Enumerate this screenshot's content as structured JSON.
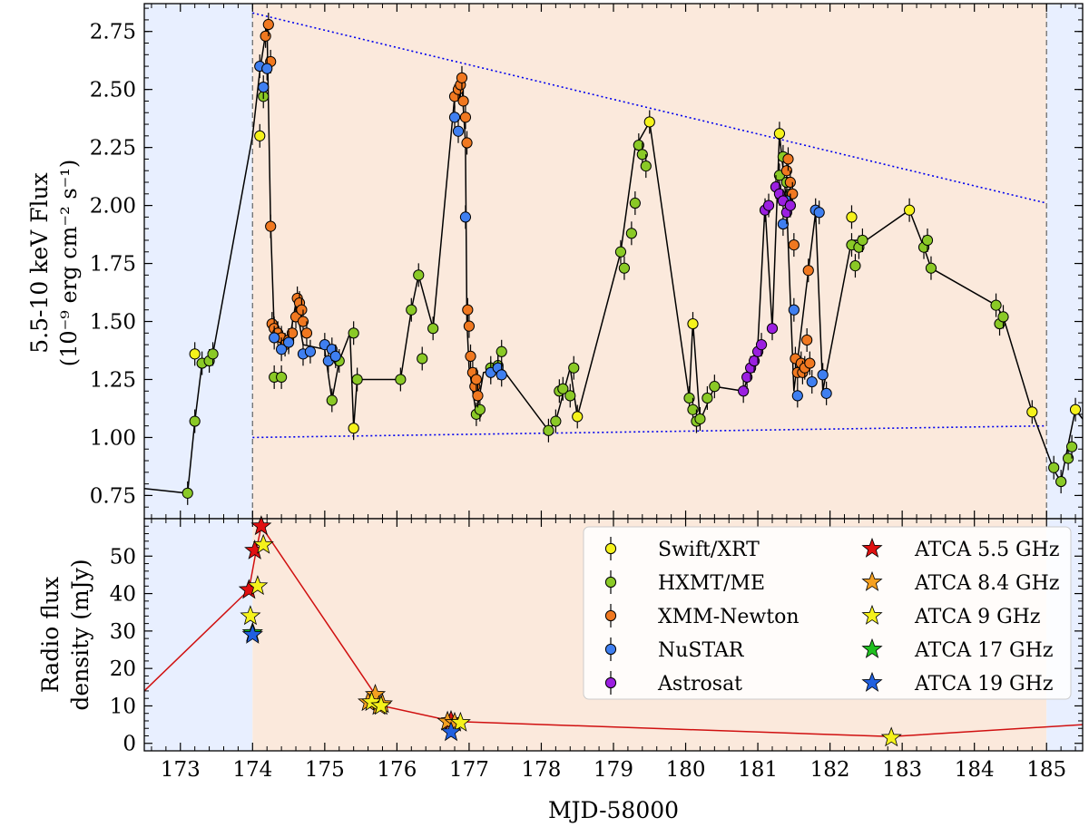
{
  "figure": {
    "xlabel": "MJD-58000",
    "x_ticks": [
      "173",
      "174",
      "175",
      "176",
      "177",
      "178",
      "179",
      "180",
      "181",
      "182",
      "183",
      "184",
      "185"
    ]
  },
  "colors": {
    "quiescent_bg": "#e8efff",
    "outburst_bg": "#fbe9dc",
    "swift": "#f5f21b",
    "hxmt": "#8ac926",
    "xmm": "#f07820",
    "nustar": "#3f7ff0",
    "astrosat": "#9b1fe0",
    "atca_5_5": "#e01010",
    "atca_8_4": "#f5a020",
    "atca_9": "#f5f21b",
    "atca_17": "#20c020",
    "atca_19": "#2060e0",
    "envelope": "#0000ee",
    "radio_line": "#d01010"
  },
  "chart_data": [
    {
      "type": "scatter",
      "panel": "top",
      "ylabel": "5.5-10 keV Flux",
      "ylabel_units": "(10⁻⁹ erg cm⁻² s⁻¹)",
      "xlim": [
        172.5,
        185.5
      ],
      "ylim": [
        0.65,
        2.87
      ],
      "y_ticks": [
        "0.75",
        "1.00",
        "1.25",
        "1.50",
        "1.75",
        "2.00",
        "2.25",
        "2.50",
        "2.75"
      ],
      "shaded_regions": [
        [
          172.5,
          174.0,
          "quiescent"
        ],
        [
          174.0,
          185.0,
          "outburst"
        ],
        [
          185.0,
          185.5,
          "quiescent"
        ]
      ],
      "envelope_upper": [
        [
          174.0,
          2.83
        ],
        [
          185.0,
          2.01
        ]
      ],
      "envelope_lower": [
        [
          174.0,
          1.0
        ],
        [
          185.0,
          1.05
        ]
      ],
      "connected_line": [
        [
          172.5,
          0.78
        ],
        [
          173.1,
          0.76
        ],
        [
          173.2,
          1.07
        ],
        [
          173.3,
          1.32
        ],
        [
          173.45,
          1.36
        ],
        [
          174.0,
          2.3
        ],
        [
          174.1,
          2.58
        ],
        [
          174.2,
          2.78
        ],
        [
          174.25,
          1.92
        ],
        [
          174.3,
          1.46
        ],
        [
          174.5,
          1.4
        ],
        [
          174.6,
          1.58
        ],
        [
          174.7,
          1.4
        ],
        [
          175.0,
          1.38
        ],
        [
          175.1,
          1.16
        ],
        [
          175.2,
          1.33
        ],
        [
          175.35,
          1.45
        ],
        [
          175.4,
          1.04
        ],
        [
          175.45,
          1.25
        ],
        [
          176.05,
          1.25
        ],
        [
          176.2,
          1.55
        ],
        [
          176.3,
          1.7
        ],
        [
          176.5,
          1.47
        ],
        [
          176.8,
          2.47
        ],
        [
          176.9,
          2.52
        ],
        [
          176.95,
          2.27
        ],
        [
          176.97,
          1.5
        ],
        [
          177.0,
          1.3
        ],
        [
          177.1,
          1.1
        ],
        [
          177.2,
          1.28
        ],
        [
          177.45,
          1.3
        ],
        [
          178.1,
          1.03
        ],
        [
          178.2,
          1.07
        ],
        [
          178.4,
          1.3
        ],
        [
          178.5,
          1.09
        ],
        [
          179.1,
          1.8
        ],
        [
          179.3,
          2.25
        ],
        [
          179.5,
          2.36
        ],
        [
          180.05,
          1.17
        ],
        [
          180.1,
          1.5
        ],
        [
          180.2,
          1.07
        ],
        [
          180.4,
          1.22
        ],
        [
          180.8,
          1.2
        ],
        [
          181.0,
          1.4
        ],
        [
          181.1,
          2.0
        ],
        [
          181.2,
          1.47
        ],
        [
          181.3,
          2.31
        ],
        [
          181.4,
          2.0
        ],
        [
          181.5,
          1.2
        ],
        [
          181.7,
          1.72
        ],
        [
          181.8,
          1.97
        ],
        [
          181.9,
          1.2
        ],
        [
          182.3,
          1.85
        ],
        [
          182.5,
          1.85
        ],
        [
          183.1,
          1.98
        ],
        [
          183.3,
          1.82
        ],
        [
          183.4,
          1.73
        ],
        [
          184.3,
          1.57
        ],
        [
          184.4,
          1.52
        ],
        [
          184.8,
          1.11
        ],
        [
          185.1,
          0.86
        ],
        [
          185.2,
          0.81
        ],
        [
          185.3,
          0.97
        ],
        [
          185.4,
          1.12
        ],
        [
          185.5,
          1.08
        ]
      ],
      "series": [
        {
          "name": "Swift/XRT",
          "x": [
            173.2,
            174.1,
            175.4,
            178.5,
            179.5,
            180.1,
            181.3,
            182.3,
            183.1,
            184.8,
            185.4
          ],
          "y": [
            1.36,
            2.3,
            1.04,
            1.09,
            2.36,
            1.49,
            2.31,
            1.95,
            1.98,
            1.11,
            1.12
          ]
        },
        {
          "name": "HXMT/ME",
          "x": [
            173.1,
            173.2,
            173.3,
            173.4,
            173.45,
            174.15,
            174.3,
            174.4,
            175.1,
            175.2,
            175.4,
            175.45,
            176.05,
            176.2,
            176.3,
            176.35,
            176.5,
            177.1,
            177.15,
            177.3,
            177.4,
            177.45,
            178.1,
            178.2,
            178.25,
            178.3,
            178.4,
            178.45,
            179.1,
            179.15,
            179.25,
            179.3,
            179.35,
            179.4,
            179.45,
            180.05,
            180.1,
            180.15,
            180.2,
            180.3,
            180.4,
            181.3,
            181.35,
            181.4,
            181.45,
            182.3,
            182.35,
            182.4,
            182.45,
            183.3,
            183.35,
            183.4,
            184.3,
            184.35,
            184.4,
            185.1,
            185.2,
            185.3,
            185.35
          ],
          "y": [
            0.76,
            1.07,
            1.32,
            1.33,
            1.36,
            2.47,
            1.26,
            1.26,
            1.16,
            1.33,
            1.45,
            1.25,
            1.25,
            1.55,
            1.7,
            1.34,
            1.47,
            1.1,
            1.12,
            1.3,
            1.31,
            1.37,
            1.03,
            1.07,
            1.2,
            1.21,
            1.18,
            1.3,
            1.8,
            1.73,
            1.88,
            2.01,
            2.26,
            2.22,
            2.17,
            1.17,
            1.12,
            1.07,
            1.08,
            1.17,
            1.22,
            2.13,
            2.21,
            2.1,
            2.05,
            1.83,
            1.74,
            1.82,
            1.85,
            1.82,
            1.85,
            1.73,
            1.57,
            1.49,
            1.52,
            0.87,
            0.81,
            0.91,
            0.96
          ]
        },
        {
          "name": "XMM-Newton",
          "x": [
            174.25,
            174.27,
            174.3,
            174.35,
            174.4,
            174.45,
            174.5,
            174.55,
            174.6,
            174.62,
            174.65,
            174.68,
            174.7,
            174.75,
            174.25,
            174.18,
            174.22,
            176.8,
            176.85,
            176.88,
            176.9,
            176.92,
            176.95,
            176.97,
            176.98,
            177.0,
            177.02,
            177.05,
            177.08,
            177.1,
            177.12,
            181.5,
            181.52,
            181.55,
            181.6,
            181.62,
            181.65,
            181.68,
            181.7,
            181.72,
            181.4,
            181.42,
            181.45,
            181.48
          ],
          "y": [
            1.91,
            1.49,
            1.47,
            1.45,
            1.43,
            1.4,
            1.42,
            1.45,
            1.52,
            1.6,
            1.58,
            1.55,
            1.5,
            1.45,
            2.62,
            2.73,
            2.78,
            2.47,
            2.5,
            2.52,
            2.55,
            2.45,
            2.38,
            2.27,
            1.55,
            1.48,
            1.35,
            1.28,
            1.22,
            1.25,
            1.18,
            1.83,
            1.34,
            1.28,
            1.32,
            1.28,
            1.3,
            1.42,
            1.72,
            1.32,
            2.15,
            2.2,
            2.1,
            2.05
          ]
        },
        {
          "name": "NuSTAR",
          "x": [
            174.1,
            174.15,
            174.2,
            174.3,
            174.4,
            174.5,
            174.7,
            174.8,
            175.0,
            175.05,
            175.1,
            175.15,
            176.8,
            176.85,
            176.95,
            177.3,
            177.4,
            177.45,
            181.35,
            181.4,
            181.45,
            181.5,
            181.55,
            181.75,
            181.8,
            181.85,
            181.9,
            181.95
          ],
          "y": [
            2.6,
            2.51,
            2.59,
            1.43,
            1.38,
            1.41,
            1.36,
            1.37,
            1.4,
            1.33,
            1.38,
            1.35,
            2.38,
            2.32,
            1.95,
            1.28,
            1.3,
            1.27,
            1.92,
            2.02,
            2.0,
            1.55,
            1.18,
            1.24,
            1.98,
            1.97,
            1.27,
            1.19
          ]
        },
        {
          "name": "Astrosat",
          "x": [
            180.8,
            180.85,
            180.9,
            180.95,
            181.0,
            181.05,
            181.1,
            181.15,
            181.2,
            181.25,
            181.3,
            181.35,
            181.4,
            181.45
          ],
          "y": [
            1.2,
            1.26,
            1.3,
            1.33,
            1.37,
            1.4,
            1.98,
            2.0,
            1.47,
            2.08,
            2.05,
            2.02,
            1.97,
            2.0
          ]
        }
      ]
    },
    {
      "type": "scatter",
      "panel": "bottom",
      "ylabel": "Radio flux",
      "ylabel2": "density (mJy)",
      "xlim": [
        172.5,
        185.5
      ],
      "ylim": [
        -2,
        60
      ],
      "y_ticks": [
        "0",
        "10",
        "20",
        "30",
        "40",
        "50"
      ],
      "connected_line": [
        [
          172.5,
          14
        ],
        [
          173.95,
          41
        ],
        [
          174.05,
          51.5
        ],
        [
          174.12,
          58
        ],
        [
          175.7,
          13
        ],
        [
          175.8,
          10
        ],
        [
          176.75,
          6
        ],
        [
          176.85,
          5.8
        ],
        [
          182.85,
          1.8
        ],
        [
          185.5,
          5
        ]
      ],
      "series": [
        {
          "name": "ATCA 5.5 GHz",
          "x": [
            173.95,
            174.03,
            174.12,
            176.75
          ],
          "y": [
            41,
            51.5,
            58,
            6
          ]
        },
        {
          "name": "ATCA 8.4 GHz",
          "x": [
            175.6,
            175.7,
            175.75,
            175.8,
            176.7,
            176.8
          ],
          "y": [
            11,
            13,
            10,
            10.5,
            5.8,
            5.5
          ]
        },
        {
          "name": "ATCA 9 GHz",
          "x": [
            173.97,
            174.07,
            174.15,
            175.65,
            175.78,
            176.88,
            182.85
          ],
          "y": [
            34,
            42,
            53,
            11,
            10,
            5.5,
            1.5
          ]
        },
        {
          "name": "ATCA 17 GHz",
          "x": [
            174.0
          ],
          "y": [
            29.5
          ]
        },
        {
          "name": "ATCA 19 GHz",
          "x": [
            174.0,
            176.75
          ],
          "y": [
            29,
            3
          ]
        }
      ]
    }
  ]
}
